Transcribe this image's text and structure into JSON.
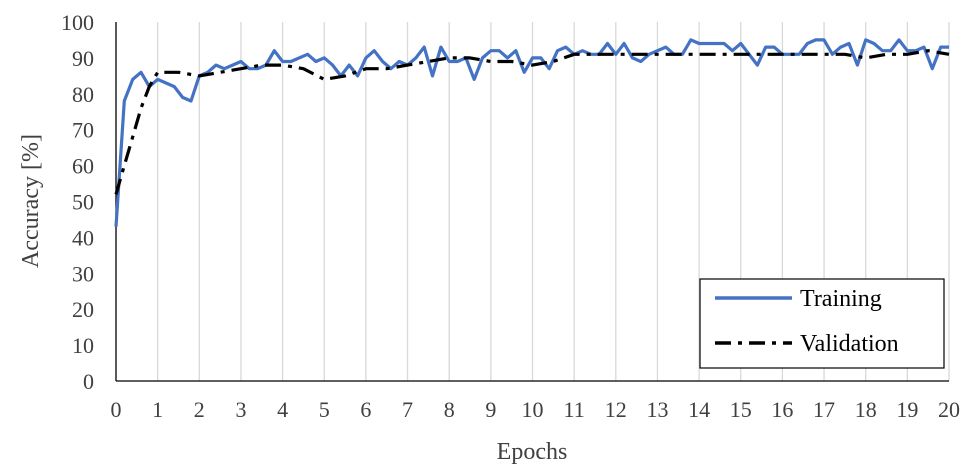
{
  "chart_data": {
    "type": "line",
    "xlabel": "Epochs",
    "ylabel": "Accuracy [%]",
    "xlim": [
      0,
      20
    ],
    "ylim": [
      0,
      100
    ],
    "xticks": [
      0,
      1,
      2,
      3,
      4,
      5,
      6,
      7,
      8,
      9,
      10,
      11,
      12,
      13,
      14,
      15,
      16,
      17,
      18,
      19,
      20
    ],
    "yticks": [
      0,
      10,
      20,
      30,
      40,
      50,
      60,
      70,
      80,
      90,
      100
    ],
    "grid": "vertical",
    "legend_position": "bottom-right",
    "series": [
      {
        "name": "Training",
        "color": "#4472C4",
        "style": "solid",
        "x": [
          0,
          0.2,
          0.4,
          0.6,
          0.8,
          1.0,
          1.2,
          1.4,
          1.6,
          1.8,
          2.0,
          2.2,
          2.4,
          2.6,
          2.8,
          3.0,
          3.2,
          3.4,
          3.6,
          3.8,
          4.0,
          4.2,
          4.4,
          4.6,
          4.8,
          5.0,
          5.2,
          5.4,
          5.6,
          5.8,
          6.0,
          6.2,
          6.4,
          6.6,
          6.8,
          7.0,
          7.2,
          7.4,
          7.6,
          7.8,
          8.0,
          8.2,
          8.4,
          8.6,
          8.8,
          9.0,
          9.2,
          9.4,
          9.6,
          9.8,
          10.0,
          10.2,
          10.4,
          10.6,
          10.8,
          11.0,
          11.2,
          11.4,
          11.6,
          11.8,
          12.0,
          12.2,
          12.4,
          12.6,
          12.8,
          13.0,
          13.2,
          13.4,
          13.6,
          13.8,
          14.0,
          14.2,
          14.4,
          14.6,
          14.8,
          15.0,
          15.2,
          15.4,
          15.6,
          15.8,
          16.0,
          16.2,
          16.4,
          16.6,
          16.8,
          17.0,
          17.2,
          17.4,
          17.6,
          17.8,
          18.0,
          18.2,
          18.4,
          18.6,
          18.8,
          19.0,
          19.2,
          19.4,
          19.6,
          19.8,
          20.0
        ],
        "values": [
          43,
          78,
          84,
          86,
          82,
          84,
          83,
          82,
          79,
          78,
          85,
          86,
          88,
          87,
          88,
          89,
          87,
          87,
          88,
          92,
          89,
          89,
          90,
          91,
          89,
          90,
          88,
          85,
          88,
          85,
          90,
          92,
          89,
          87,
          89,
          88,
          90,
          93,
          85,
          93,
          89,
          89,
          90,
          84,
          90,
          92,
          92,
          90,
          92,
          86,
          90,
          90,
          87,
          92,
          93,
          91,
          92,
          91,
          91,
          94,
          91,
          94,
          90,
          89,
          91,
          92,
          93,
          91,
          91,
          95,
          94,
          94,
          94,
          94,
          92,
          94,
          91,
          88,
          93,
          93,
          91,
          91,
          91,
          94,
          95,
          95,
          91,
          93,
          94,
          88,
          95,
          94,
          92,
          92,
          95,
          92,
          92,
          93,
          87,
          93,
          93
        ]
      },
      {
        "name": "Validation",
        "color": "#000000",
        "style": "dash-dot",
        "x": [
          0,
          0.2,
          0.4,
          0.6,
          0.8,
          1.0,
          1.5,
          2.0,
          2.5,
          3.0,
          3.5,
          4.0,
          4.5,
          5.0,
          5.5,
          6.0,
          6.5,
          7.0,
          7.5,
          8.0,
          8.5,
          9.0,
          9.5,
          10.0,
          10.5,
          11.0,
          11.5,
          12.0,
          12.5,
          13.0,
          13.5,
          14.0,
          14.5,
          15.0,
          15.5,
          16.0,
          16.5,
          17.0,
          17.5,
          18.0,
          18.5,
          19.0,
          19.5,
          20.0
        ],
        "values": [
          52,
          60,
          68,
          76,
          82,
          86,
          86,
          85,
          86,
          87,
          88,
          88,
          87,
          84,
          85,
          87,
          87,
          88,
          89,
          90,
          90,
          89,
          89,
          88,
          89,
          91,
          91,
          91,
          91,
          91,
          91,
          91,
          91,
          91,
          91,
          91,
          91,
          91,
          91,
          90,
          91,
          91,
          92,
          91
        ]
      }
    ]
  }
}
